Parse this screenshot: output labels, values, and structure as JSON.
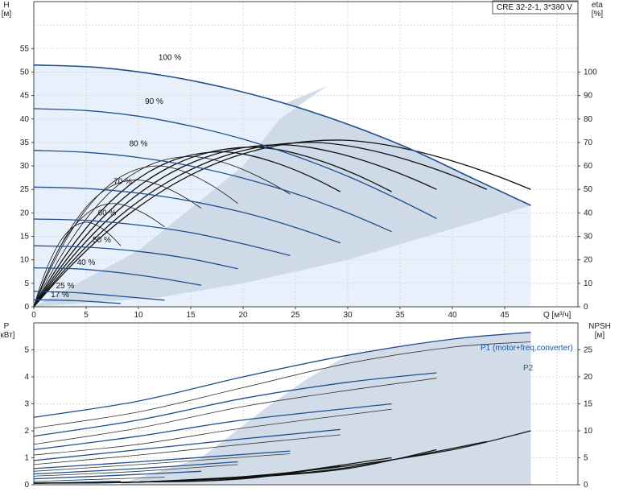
{
  "product_label": "CRE 32-2-1, 3*380 V",
  "colors": {
    "grid": "#c8c8c8",
    "grid_dash": "#d9d9d9",
    "shade": "#c9d6e4",
    "shade_light": "#e8f1fb",
    "blue": "#1f4e8c",
    "black": "#111111",
    "label_blue": "#1f5aa6"
  },
  "chart_data": [
    {
      "type": "line",
      "title": "",
      "xlabel": "Q [м³/ч]",
      "ylabel": "H\n[м]",
      "y2label": "eta\n[%]",
      "xlim": [
        0,
        52
      ],
      "ylim": [
        0,
        65
      ],
      "y2lim": [
        0,
        130
      ],
      "xticks": [
        0,
        5,
        10,
        15,
        20,
        25,
        30,
        35,
        40,
        45
      ],
      "yticks": [
        0,
        5,
        10,
        15,
        20,
        25,
        30,
        35,
        40,
        45,
        50,
        55
      ],
      "y2ticks": [
        0,
        10,
        20,
        30,
        40,
        50,
        60,
        70,
        80,
        90,
        100
      ],
      "grid": true,
      "series": [
        {
          "name": "100 %",
          "kind": "head",
          "x": [
            0,
            6,
            12,
            18,
            24,
            30,
            36,
            42,
            47.5
          ],
          "y": [
            51.5,
            51.0,
            49.4,
            46.8,
            43.3,
            38.9,
            33.6,
            27.3,
            21.6
          ]
        },
        {
          "name": "90 %",
          "kind": "head",
          "x": [
            0,
            5,
            10,
            15,
            20,
            25,
            30,
            35,
            38.5
          ],
          "y": [
            42.2,
            41.8,
            40.6,
            38.5,
            35.7,
            32.1,
            27.8,
            22.7,
            18.8
          ]
        },
        {
          "name": "80 %",
          "kind": "head",
          "x": [
            0,
            5,
            10,
            15,
            20,
            25,
            30,
            34.2
          ],
          "y": [
            33.3,
            32.9,
            31.8,
            30.0,
            27.4,
            24.1,
            20.0,
            16.0
          ]
        },
        {
          "name": "70 %",
          "kind": "head",
          "x": [
            0,
            5,
            10,
            15,
            20,
            25,
            29.3
          ],
          "y": [
            25.5,
            25.2,
            24.2,
            22.5,
            20.1,
            16.9,
            13.6
          ]
        },
        {
          "name": "60 %",
          "kind": "head",
          "x": [
            0,
            5,
            10,
            15,
            20,
            24.5
          ],
          "y": [
            18.7,
            18.4,
            17.4,
            15.8,
            13.4,
            10.9
          ]
        },
        {
          "name": "50 %",
          "kind": "head",
          "x": [
            0,
            5,
            10,
            15,
            19.5
          ],
          "y": [
            13.0,
            12.7,
            11.8,
            10.2,
            8.1
          ]
        },
        {
          "name": "40 %",
          "kind": "head",
          "x": [
            0,
            4,
            8,
            12,
            16
          ],
          "y": [
            8.3,
            8.1,
            7.3,
            6.1,
            4.6
          ]
        },
        {
          "name": "25 %",
          "kind": "head",
          "x": [
            0,
            4,
            8,
            12.5
          ],
          "y": [
            3.3,
            3.0,
            2.3,
            1.4
          ]
        },
        {
          "name": "17 %",
          "kind": "head",
          "x": [
            0,
            4,
            8.3
          ],
          "y": [
            1.5,
            1.3,
            0.7
          ]
        }
      ],
      "efficiency_peaks": [
        {
          "x_end": 8.3,
          "peak": 36,
          "end": 26
        },
        {
          "x_end": 12.5,
          "peak": 44,
          "end": 34
        },
        {
          "x_end": 16,
          "peak": 54,
          "end": 42
        },
        {
          "x_end": 19.5,
          "peak": 60,
          "end": 44
        },
        {
          "x_end": 24.5,
          "peak": 64,
          "end": 48
        },
        {
          "x_end": 29.3,
          "peak": 66,
          "end": 49
        },
        {
          "x_end": 34.2,
          "peak": 68,
          "end": 49
        },
        {
          "x_end": 38.5,
          "peak": 69,
          "end": 50
        },
        {
          "x_end": 43.3,
          "peak": 70,
          "end": 50
        },
        {
          "x_end": 47.5,
          "peak": 71,
          "end": 50
        }
      ]
    },
    {
      "type": "line",
      "title": "",
      "xlabel": "",
      "ylabel": "P\n[кВт]",
      "y2label": "NPSH\n[м]",
      "xlim": [
        0,
        52
      ],
      "ylim": [
        0,
        6
      ],
      "y2lim": [
        0,
        30
      ],
      "yticks": [
        0,
        1,
        2,
        3,
        4,
        5
      ],
      "y2ticks": [
        0,
        5,
        10,
        15,
        20,
        25
      ],
      "grid": true,
      "series": [
        {
          "name": "P1 (motor+freq.converter)",
          "kind": "power",
          "x": [
            0,
            10,
            20,
            30,
            40,
            47.5
          ],
          "y": [
            2.5,
            3.1,
            4.0,
            4.8,
            5.4,
            5.65
          ]
        },
        {
          "name": "P2",
          "kind": "power",
          "x": [
            0,
            10,
            20,
            30,
            40,
            47.5
          ],
          "y": [
            2.1,
            2.7,
            3.6,
            4.5,
            5.1,
            5.3
          ]
        },
        {
          "name": "",
          "kind": "power",
          "x": [
            0,
            10,
            20,
            30,
            38.5
          ],
          "y": [
            1.8,
            2.4,
            3.2,
            3.8,
            4.15
          ]
        },
        {
          "name": "",
          "kind": "power",
          "x": [
            0,
            10,
            20,
            30,
            38.5
          ],
          "y": [
            1.5,
            2.1,
            2.9,
            3.5,
            3.95
          ]
        },
        {
          "name": "",
          "kind": "power",
          "x": [
            0,
            10,
            20,
            34.2
          ],
          "y": [
            1.3,
            1.8,
            2.4,
            3.0
          ]
        },
        {
          "name": "",
          "kind": "power",
          "x": [
            0,
            10,
            20,
            34.2
          ],
          "y": [
            1.1,
            1.5,
            2.1,
            2.8
          ]
        },
        {
          "name": "",
          "kind": "power",
          "x": [
            0,
            10,
            20,
            29.3
          ],
          "y": [
            0.9,
            1.3,
            1.7,
            2.05
          ]
        },
        {
          "name": "",
          "kind": "power",
          "x": [
            0,
            10,
            20,
            29.3
          ],
          "y": [
            0.75,
            1.1,
            1.5,
            1.85
          ]
        },
        {
          "name": "",
          "kind": "power",
          "x": [
            0,
            10,
            24.5
          ],
          "y": [
            0.6,
            0.85,
            1.25
          ]
        },
        {
          "name": "",
          "kind": "power",
          "x": [
            0,
            10,
            24.5
          ],
          "y": [
            0.5,
            0.75,
            1.15
          ]
        },
        {
          "name": "",
          "kind": "power",
          "x": [
            0,
            10,
            19.5
          ],
          "y": [
            0.4,
            0.6,
            0.85
          ]
        },
        {
          "name": "",
          "kind": "power",
          "x": [
            0,
            10,
            19.5
          ],
          "y": [
            0.32,
            0.5,
            0.75
          ]
        },
        {
          "name": "",
          "kind": "power",
          "x": [
            0,
            8,
            16
          ],
          "y": [
            0.22,
            0.35,
            0.5
          ]
        },
        {
          "name": "",
          "kind": "power",
          "x": [
            0,
            6,
            12.5
          ],
          "y": [
            0.12,
            0.2,
            0.28
          ]
        },
        {
          "name": "",
          "kind": "power",
          "x": [
            0,
            4,
            8.3
          ],
          "y": [
            0.06,
            0.09,
            0.13
          ]
        }
      ],
      "npsh": [
        {
          "x": [
            0,
            10,
            20,
            30,
            40,
            47.5
          ],
          "y": [
            0.3,
            0.5,
            1.5,
            3.5,
            6.5,
            10
          ]
        },
        {
          "x": [
            0,
            10,
            20,
            30,
            43.3
          ],
          "y": [
            0.3,
            0.5,
            1.4,
            3.2,
            8
          ]
        },
        {
          "x": [
            0,
            10,
            20,
            30,
            38.5
          ],
          "y": [
            0.3,
            0.5,
            1.3,
            3.0,
            6.5
          ]
        },
        {
          "x": [
            0,
            10,
            20,
            34.2
          ],
          "y": [
            0.3,
            0.5,
            1.2,
            5
          ]
        },
        {
          "x": [
            0,
            10,
            20,
            29.3
          ],
          "y": [
            0.3,
            0.5,
            1.1,
            3.5
          ]
        },
        {
          "x": [
            0,
            10,
            24.5
          ],
          "y": [
            0.3,
            0.5,
            2
          ]
        }
      ]
    }
  ]
}
